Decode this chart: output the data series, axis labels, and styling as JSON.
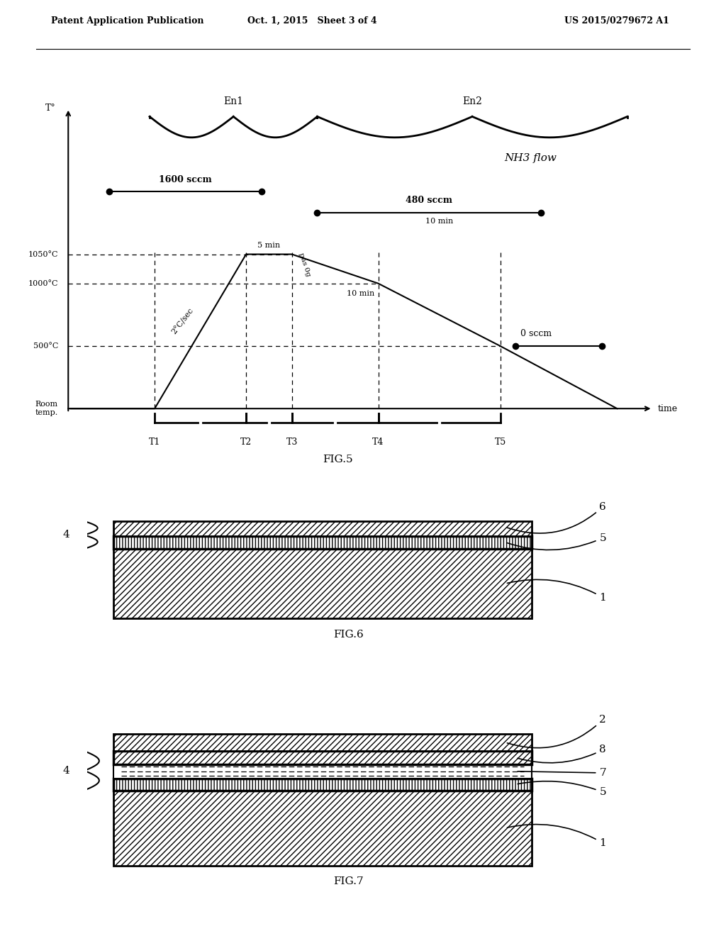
{
  "header_left": "Patent Application Publication",
  "header_mid": "Oct. 1, 2015   Sheet 3 of 4",
  "header_right": "US 2015/0279672 A1",
  "fig5_label": "FIG.5",
  "fig6_label": "FIG.6",
  "fig7_label": "FIG.7",
  "background": "#ffffff",
  "line_color": "#000000"
}
